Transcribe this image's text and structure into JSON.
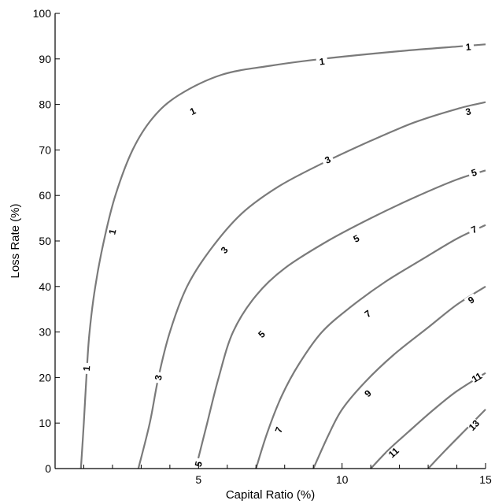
{
  "chart_data": {
    "type": "contour",
    "title": "",
    "xlabel": "Capital Ratio (%)",
    "ylabel": "Loss Rate (%)",
    "xlim": [
      0,
      15
    ],
    "ylim": [
      0,
      100
    ],
    "x_ticks": [
      5,
      10,
      15
    ],
    "x_minor_ticks": [
      1,
      2,
      3,
      4,
      6,
      7,
      8,
      9,
      11,
      12,
      13,
      14
    ],
    "y_ticks": [
      0,
      10,
      20,
      30,
      40,
      50,
      60,
      70,
      80,
      90,
      100
    ],
    "grid": false,
    "line_color": "#7a7a7a",
    "levels": [
      {
        "level": 1,
        "label": "1",
        "points": [
          [
            0.9,
            0
          ],
          [
            1.0,
            10
          ],
          [
            1.1,
            21
          ],
          [
            1.2,
            30
          ],
          [
            1.4,
            40
          ],
          [
            1.7,
            50
          ],
          [
            2.1,
            60
          ],
          [
            2.7,
            70
          ],
          [
            3.4,
            77
          ],
          [
            4.3,
            82
          ],
          [
            5.8,
            86.5
          ],
          [
            7.5,
            88.5
          ],
          [
            9.3,
            90
          ],
          [
            12.0,
            91.7
          ],
          [
            14.0,
            92.7
          ],
          [
            15.0,
            93.2
          ]
        ],
        "label_positions": [
          [
            1.1,
            22
          ],
          [
            2.0,
            52
          ],
          [
            4.8,
            78.5
          ],
          [
            9.3,
            89.4
          ],
          [
            14.4,
            92.6
          ]
        ]
      },
      {
        "level": 3,
        "label": "3",
        "points": [
          [
            2.9,
            0
          ],
          [
            3.3,
            10
          ],
          [
            3.6,
            20
          ],
          [
            4.0,
            30
          ],
          [
            4.6,
            40
          ],
          [
            5.4,
            48
          ],
          [
            6.5,
            56
          ],
          [
            7.8,
            62
          ],
          [
            9.3,
            67
          ],
          [
            11.0,
            72
          ],
          [
            12.5,
            76
          ],
          [
            14.0,
            79
          ],
          [
            15.0,
            80.5
          ]
        ],
        "label_positions": [
          [
            3.6,
            20
          ],
          [
            5.9,
            48
          ],
          [
            9.5,
            67.8
          ],
          [
            14.4,
            78.4
          ]
        ]
      },
      {
        "level": 5,
        "label": "5",
        "points": [
          [
            4.9,
            0
          ],
          [
            5.3,
            10
          ],
          [
            5.7,
            20
          ],
          [
            6.2,
            30
          ],
          [
            7.0,
            38
          ],
          [
            8.0,
            44
          ],
          [
            9.5,
            50
          ],
          [
            11.0,
            55
          ],
          [
            12.5,
            59.5
          ],
          [
            14.0,
            63.5
          ],
          [
            15.0,
            65.5
          ]
        ],
        "label_positions": [
          [
            5.0,
            1
          ],
          [
            7.2,
            29.5
          ],
          [
            10.5,
            50.5
          ],
          [
            14.6,
            65
          ]
        ]
      },
      {
        "level": 7,
        "label": "7",
        "points": [
          [
            7.0,
            0
          ],
          [
            7.4,
            8
          ],
          [
            7.9,
            16
          ],
          [
            8.5,
            23
          ],
          [
            9.3,
            30
          ],
          [
            10.3,
            35.5
          ],
          [
            11.5,
            41
          ],
          [
            12.8,
            46
          ],
          [
            14.0,
            50.5
          ],
          [
            15.0,
            53.5
          ]
        ],
        "label_positions": [
          [
            7.8,
            8.5
          ],
          [
            10.9,
            34
          ],
          [
            14.6,
            52.5
          ]
        ]
      },
      {
        "level": 9,
        "label": "9",
        "points": [
          [
            9.0,
            0
          ],
          [
            9.5,
            7
          ],
          [
            10.0,
            13
          ],
          [
            10.8,
            19
          ],
          [
            11.8,
            25
          ],
          [
            13.0,
            31
          ],
          [
            14.0,
            36
          ],
          [
            15.0,
            40
          ]
        ],
        "label_positions": [
          [
            10.9,
            16.5
          ],
          [
            14.5,
            37
          ]
        ]
      },
      {
        "level": 11,
        "label": "11",
        "points": [
          [
            11.0,
            0
          ],
          [
            11.6,
            4
          ],
          [
            12.3,
            8
          ],
          [
            13.2,
            13
          ],
          [
            14.0,
            17
          ],
          [
            15.0,
            21
          ]
        ],
        "label_positions": [
          [
            11.8,
            3.5
          ],
          [
            14.7,
            20
          ]
        ]
      },
      {
        "level": 13,
        "label": "13",
        "points": [
          [
            13.0,
            0
          ],
          [
            13.6,
            4
          ],
          [
            14.3,
            8.5
          ],
          [
            15.0,
            13
          ]
        ],
        "label_positions": [
          [
            14.6,
            9.5
          ]
        ]
      }
    ]
  }
}
